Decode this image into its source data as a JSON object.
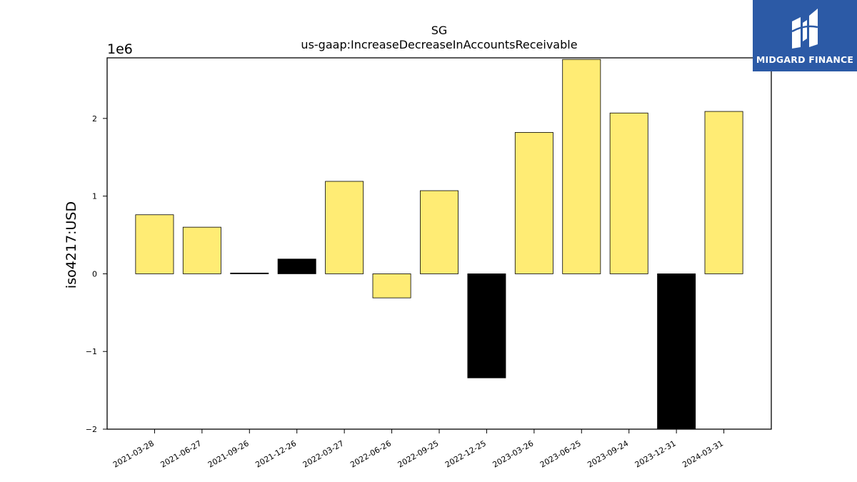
{
  "chart_data": {
    "type": "bar",
    "title": "SG",
    "subtitle": "us-gaap:IncreaseDecreaseInAccountsReceivable",
    "ylabel": "iso4217:USD",
    "xlabel": "",
    "offset_text": "1e6",
    "scale": 1000000,
    "ylim": [
      -2000000,
      2780000
    ],
    "yticks": [
      -2,
      -1,
      0,
      1,
      2
    ],
    "ytick_labels": [
      "−2",
      "−1",
      "0",
      "1",
      "2"
    ],
    "categories": [
      "2021-03-28",
      "2021-06-27",
      "2021-09-26",
      "2021-12-26",
      "2022-03-27",
      "2022-06-26",
      "2022-09-25",
      "2022-12-25",
      "2023-03-26",
      "2023-06-25",
      "2023-09-24",
      "2023-12-31",
      "2024-03-31"
    ],
    "values": [
      760000,
      600000,
      10000,
      190000,
      1190000,
      -310000,
      1070000,
      -1340000,
      1820000,
      2760000,
      2070000,
      -2020000,
      2090000
    ],
    "bar_colors": [
      "#FFEC74",
      "#FFEC74",
      "#000000",
      "#000000",
      "#FFEC74",
      "#FFEC74",
      "#FFEC74",
      "#000000",
      "#FFEC74",
      "#FFEC74",
      "#FFEC74",
      "#000000",
      "#FFEC74"
    ],
    "grid": false,
    "legend": "none"
  },
  "logo": {
    "text": "MIDGARD FINANCE",
    "background": "#2C5AA6"
  }
}
